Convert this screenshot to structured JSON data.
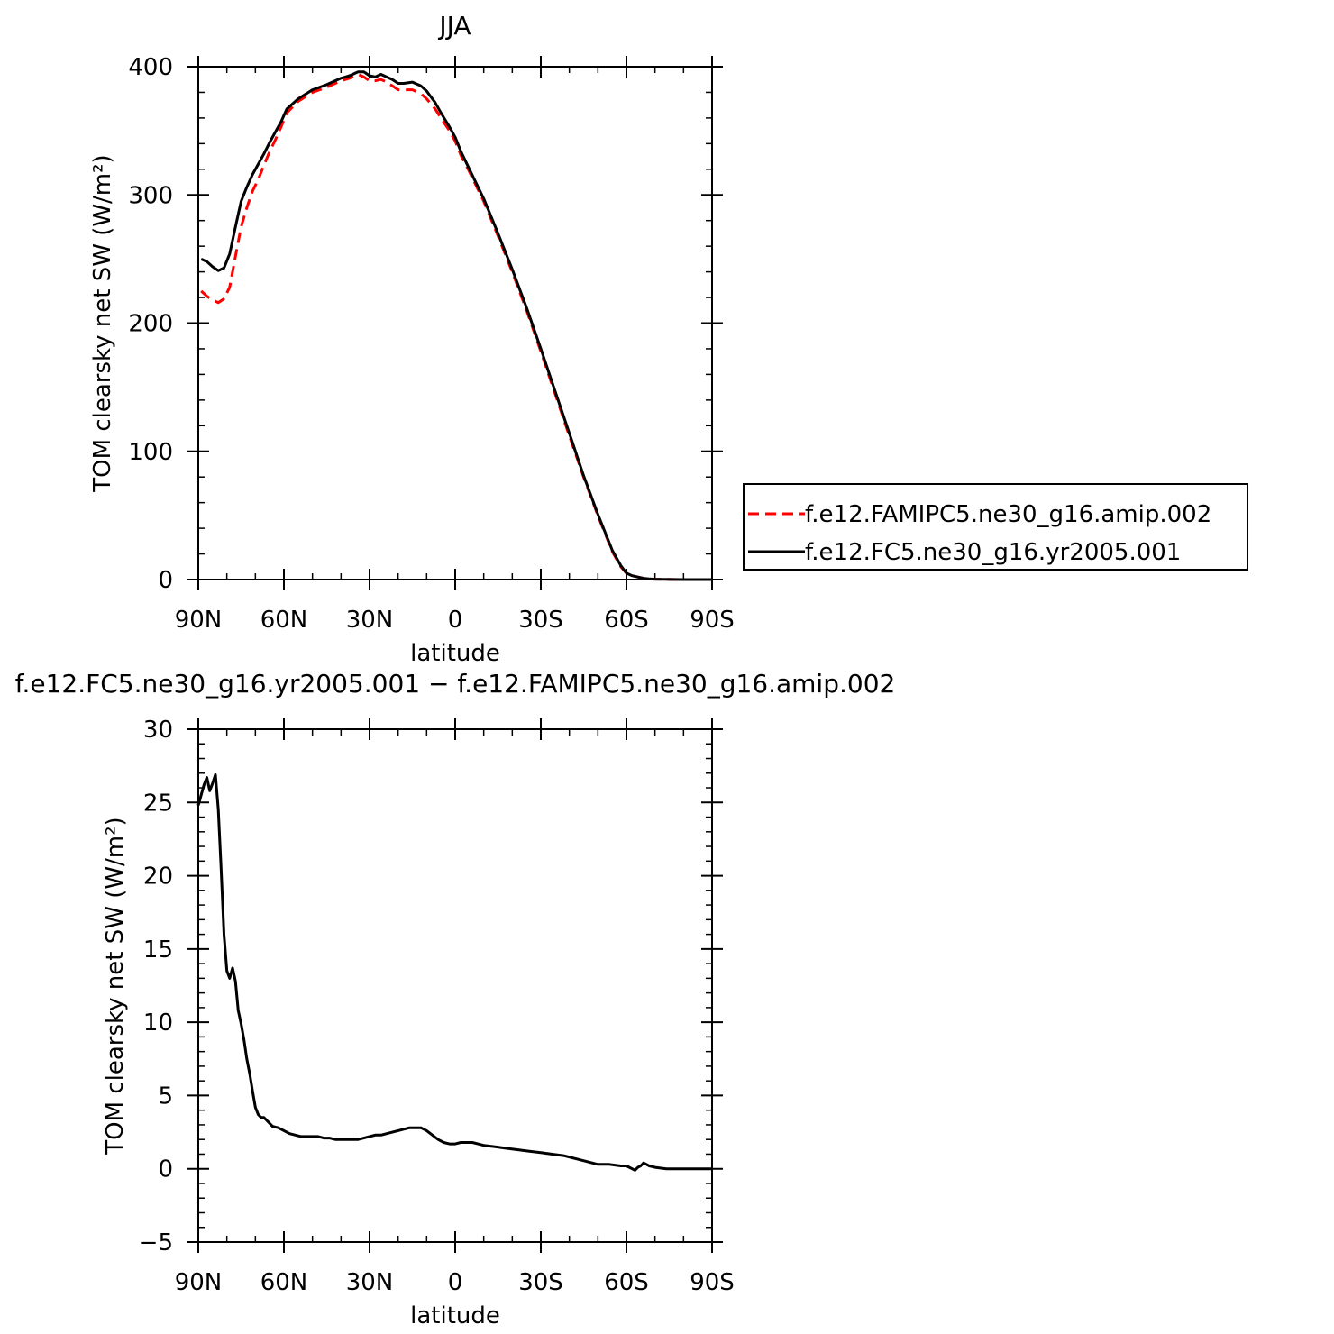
{
  "chart_data": [
    {
      "type": "line",
      "title": "JJA",
      "xlabel": "latitude",
      "ylabel": "TOM clearsky net SW (W/m²)",
      "xlim": [
        90,
        -90
      ],
      "ylim": [
        0,
        400
      ],
      "xticks": [
        90,
        60,
        30,
        0,
        -30,
        -60,
        -90
      ],
      "xtick_labels": [
        "90N",
        "60N",
        "30N",
        "0",
        "30S",
        "60S",
        "90S"
      ],
      "yticks": [
        0,
        100,
        200,
        300,
        400
      ],
      "ytick_labels": [
        "0",
        "100",
        "200",
        "300",
        "400"
      ],
      "legend_position": "right",
      "series": [
        {
          "name": "f.e12.FAMIPC5.ne30_g16.amip.002",
          "color": "#ff0000",
          "dash": "dashed",
          "x": [
            89,
            87,
            85,
            83,
            81,
            79,
            77,
            75,
            73,
            71,
            69,
            67,
            65,
            63,
            61,
            59,
            55,
            50,
            45,
            40,
            37,
            34,
            32,
            30,
            28,
            26,
            24,
            22,
            20,
            18,
            15,
            12,
            10,
            7,
            5,
            2,
            0,
            -2,
            -5,
            -10,
            -15,
            -20,
            -25,
            -30,
            -35,
            -40,
            -45,
            -50,
            -55,
            -58,
            -60,
            -62,
            -64,
            -66,
            -68,
            -70,
            -73,
            -76,
            -80,
            -85,
            -90
          ],
          "y": [
            225,
            221,
            218,
            216,
            219,
            228,
            252,
            275,
            290,
            303,
            312,
            323,
            334,
            343,
            353,
            364,
            373,
            380,
            384,
            389,
            391,
            394,
            392,
            389,
            389,
            390,
            388,
            385,
            382,
            382,
            382,
            379,
            375,
            367,
            360,
            350,
            342,
            331,
            318,
            295,
            268,
            240,
            210,
            178,
            145,
            112,
            80,
            50,
            22,
            10,
            5,
            3,
            2,
            1,
            0.5,
            0.3,
            0.2,
            0.1,
            0,
            0,
            0
          ]
        },
        {
          "name": "f.e12.FC5.ne30_g16.yr2005.001",
          "color": "#000000",
          "dash": "solid",
          "x": [
            89,
            87,
            85,
            83,
            81,
            79,
            77,
            75,
            73,
            71,
            69,
            67,
            65,
            63,
            61,
            59,
            55,
            50,
            45,
            40,
            37,
            34,
            32,
            30,
            28,
            26,
            24,
            22,
            20,
            18,
            15,
            12,
            10,
            7,
            5,
            2,
            0,
            -2,
            -5,
            -10,
            -15,
            -20,
            -25,
            -30,
            -35,
            -40,
            -45,
            -50,
            -55,
            -58,
            -60,
            -62,
            -64,
            -66,
            -68,
            -70,
            -73,
            -76,
            -80,
            -85,
            -90
          ],
          "y": [
            250,
            248,
            244,
            241,
            243,
            254,
            275,
            295,
            306,
            316,
            324,
            332,
            341,
            349,
            357,
            367,
            375,
            382,
            386,
            391,
            393,
            396,
            396,
            393,
            392,
            394,
            392,
            390,
            387,
            387,
            388,
            385,
            381,
            372,
            364,
            353,
            345,
            334,
            320,
            297,
            270,
            242,
            212,
            180,
            147,
            114,
            81,
            51,
            23,
            11,
            5,
            3,
            2,
            1,
            0.5,
            0.3,
            0.2,
            0.1,
            0,
            0,
            0
          ]
        }
      ]
    },
    {
      "type": "line",
      "title": "f.e12.FC5.ne30_g16.yr2005.001 − f.e12.FAMIPC5.ne30_g16.amip.002",
      "xlabel": "latitude",
      "ylabel": "TOM clearsky net SW (W/m²)",
      "xlim": [
        90,
        -90
      ],
      "ylim": [
        -5,
        30
      ],
      "xticks": [
        90,
        60,
        30,
        0,
        -30,
        -60,
        -90
      ],
      "xtick_labels": [
        "90N",
        "60N",
        "30N",
        "0",
        "30S",
        "60S",
        "90S"
      ],
      "yticks": [
        -5,
        0,
        5,
        10,
        15,
        20,
        25,
        30
      ],
      "ytick_labels": [
        "−5",
        "0",
        "5",
        "10",
        "15",
        "20",
        "25",
        "30"
      ],
      "series": [
        {
          "color": "#000000",
          "dash": "solid",
          "x": [
            90,
            88,
            87,
            86,
            85,
            84,
            83,
            82,
            81,
            80,
            79,
            78,
            77,
            76,
            75,
            74,
            73,
            72,
            71,
            70,
            69,
            68,
            67,
            66,
            64,
            62,
            60,
            58,
            56,
            54,
            52,
            50,
            48,
            46,
            44,
            42,
            40,
            38,
            36,
            34,
            32,
            30,
            28,
            26,
            24,
            22,
            20,
            18,
            16,
            14,
            12,
            10,
            8,
            6,
            4,
            2,
            0,
            -2,
            -4,
            -6,
            -8,
            -10,
            -14,
            -18,
            -22,
            -26,
            -30,
            -34,
            -38,
            -42,
            -46,
            -48,
            -50,
            -54,
            -58,
            -60,
            -61,
            -62,
            -63,
            -64,
            -65,
            -66,
            -67,
            -68,
            -70,
            -74,
            -80,
            -90
          ],
          "y": [
            24.8,
            26.2,
            26.7,
            25.8,
            26.3,
            26.9,
            24.5,
            20.5,
            16,
            13.5,
            13,
            13.7,
            12.8,
            10.8,
            9.9,
            8.8,
            7.5,
            6.5,
            5.3,
            4.2,
            3.7,
            3.5,
            3.5,
            3.3,
            2.9,
            2.8,
            2.6,
            2.4,
            2.3,
            2.2,
            2.2,
            2.2,
            2.2,
            2.1,
            2.1,
            2.0,
            2.0,
            2.0,
            2.0,
            2.0,
            2.1,
            2.2,
            2.3,
            2.3,
            2.4,
            2.5,
            2.6,
            2.7,
            2.8,
            2.8,
            2.8,
            2.6,
            2.3,
            2.0,
            1.8,
            1.7,
            1.7,
            1.8,
            1.8,
            1.8,
            1.7,
            1.6,
            1.5,
            1.4,
            1.3,
            1.2,
            1.1,
            1.0,
            0.9,
            0.7,
            0.5,
            0.4,
            0.3,
            0.3,
            0.2,
            0.2,
            0.1,
            0.0,
            -0.1,
            0.1,
            0.2,
            0.4,
            0.3,
            0.2,
            0.1,
            0.0,
            0.0,
            0.0
          ]
        }
      ]
    }
  ]
}
